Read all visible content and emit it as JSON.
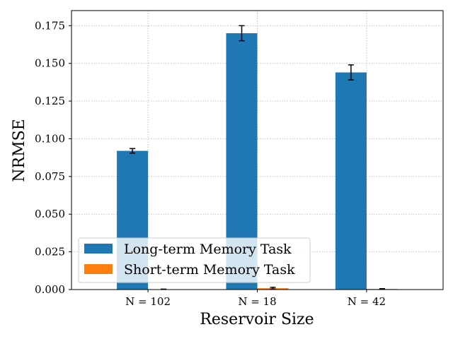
{
  "chart_data": {
    "type": "bar",
    "xlabel": "Reservoir Size",
    "ylabel": "NRMSE",
    "categories": [
      "N = 102",
      "N = 18",
      "N = 42"
    ],
    "ylim": [
      0.0,
      0.185
    ],
    "yticks": [
      0.0,
      0.025,
      0.05,
      0.075,
      0.1,
      0.125,
      0.15,
      0.175
    ],
    "ytick_labels": [
      "0.000",
      "0.025",
      "0.050",
      "0.075",
      "0.100",
      "0.125",
      "0.150",
      "0.175"
    ],
    "grid": true,
    "legend_position": "lower-left",
    "series": [
      {
        "name": "Long-term Memory Task",
        "color": "#1f77b4",
        "values": [
          0.092,
          0.17,
          0.144
        ],
        "errors": [
          0.0015,
          0.005,
          0.005
        ]
      },
      {
        "name": "Short-term Memory Task",
        "color": "#ff7f0e",
        "values": [
          0.0002,
          0.0009,
          0.0004
        ],
        "errors": [
          0.0001,
          0.0006,
          0.0002
        ]
      }
    ]
  }
}
